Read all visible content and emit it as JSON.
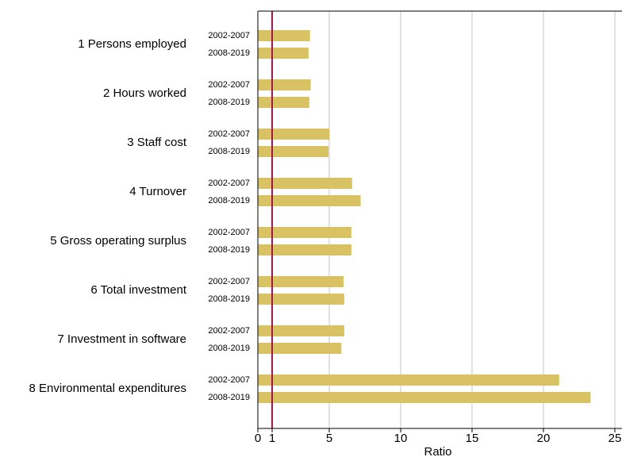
{
  "chart_data": {
    "type": "bar",
    "orientation": "horizontal",
    "categories": [
      "1 Persons employed",
      "2 Hours worked",
      "3 Staff cost",
      "4 Turnover",
      "5 Gross operating surplus",
      "6 Total investment",
      "7 Investment in software",
      "8 Environmental expenditures"
    ],
    "series": [
      {
        "name": "2002-2007",
        "color": "#d9c264",
        "values": [
          3.65,
          3.7,
          5.0,
          6.6,
          6.55,
          6.0,
          6.05,
          21.1
        ]
      },
      {
        "name": "2008-2019",
        "color": "#d9c264",
        "values": [
          3.55,
          3.6,
          4.95,
          7.2,
          6.55,
          6.05,
          5.85,
          23.3
        ]
      }
    ],
    "x_label": "Ratio",
    "xlim": [
      0,
      25.5
    ],
    "xticks": [
      0,
      1,
      5,
      10,
      15,
      20,
      25
    ],
    "reference_line": {
      "value": 1,
      "color": "#a3174d"
    },
    "grid": true
  }
}
